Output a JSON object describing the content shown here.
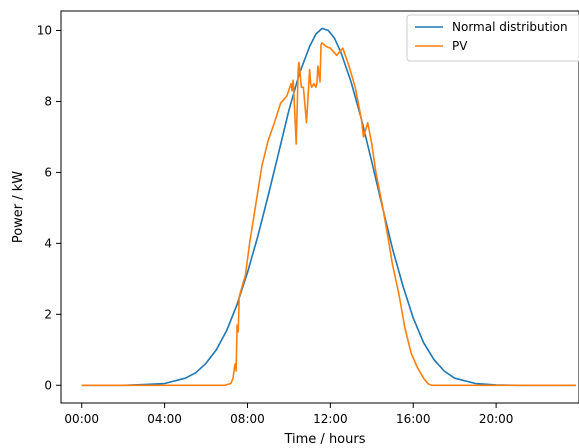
{
  "chart_data": {
    "type": "line",
    "title": "",
    "xlabel": "Time / hours",
    "ylabel": "Power / kW",
    "xlim": [
      -1,
      24
    ],
    "ylim": [
      -0.5,
      10.55
    ],
    "xticks": [
      {
        "value": 0,
        "label": "00:00"
      },
      {
        "value": 4,
        "label": "04:00"
      },
      {
        "value": 8,
        "label": "08:00"
      },
      {
        "value": 12,
        "label": "12:00"
      },
      {
        "value": 16,
        "label": "16:00"
      },
      {
        "value": 20,
        "label": "20:00"
      }
    ],
    "yticks": [
      {
        "value": 0,
        "label": "0"
      },
      {
        "value": 2,
        "label": "2"
      },
      {
        "value": 4,
        "label": "4"
      },
      {
        "value": 6,
        "label": "6"
      },
      {
        "value": 8,
        "label": "8"
      },
      {
        "value": 10,
        "label": "10"
      }
    ],
    "grid": false,
    "legend_position": "top-right",
    "series": [
      {
        "name": "Normal distribution",
        "color": "#1f77b4",
        "x": [
          0,
          1,
          2,
          3,
          4,
          5,
          5.5,
          6,
          6.5,
          7,
          7.5,
          8,
          8.5,
          9,
          9.5,
          10,
          10.5,
          11,
          11.3,
          11.6,
          11.9,
          12.2,
          12.5,
          13,
          13.5,
          14,
          14.5,
          15,
          15.5,
          16,
          16.5,
          17,
          17.5,
          18,
          19,
          20,
          21,
          22,
          23.85
        ],
        "y": [
          0.0,
          0.0,
          0.0,
          0.02,
          0.05,
          0.2,
          0.35,
          0.62,
          1.0,
          1.55,
          2.28,
          3.18,
          4.2,
          5.35,
          6.55,
          7.75,
          8.78,
          9.55,
          9.9,
          10.06,
          10.0,
          9.78,
          9.4,
          8.55,
          7.5,
          6.3,
          5.05,
          3.85,
          2.8,
          1.9,
          1.2,
          0.72,
          0.4,
          0.2,
          0.05,
          0.01,
          0.0,
          0.0,
          0.0
        ]
      },
      {
        "name": "PV",
        "color": "#ff7f0e",
        "x": [
          0,
          6.9,
          7.2,
          7.3,
          7.4,
          7.45,
          7.5,
          7.55,
          7.6,
          7.75,
          7.9,
          8.1,
          8.4,
          8.7,
          9.0,
          9.3,
          9.6,
          9.9,
          10.1,
          10.15,
          10.2,
          10.25,
          10.35,
          10.45,
          10.48,
          10.52,
          10.6,
          10.7,
          10.85,
          10.95,
          11.0,
          11.05,
          11.1,
          11.2,
          11.3,
          11.35,
          11.4,
          11.5,
          11.55,
          11.6,
          11.8,
          12.0,
          12.3,
          12.6,
          12.9,
          13.2,
          13.5,
          13.6,
          13.8,
          14.0,
          14.2,
          14.5,
          14.8,
          15.0,
          15.3,
          15.6,
          15.9,
          16.2,
          16.5,
          16.7,
          16.8,
          16.9,
          23.85
        ],
        "y": [
          0.0,
          0.0,
          0.05,
          0.2,
          0.6,
          0.4,
          1.7,
          1.5,
          2.5,
          2.8,
          3.1,
          4.0,
          5.1,
          6.2,
          6.9,
          7.4,
          7.95,
          8.15,
          8.5,
          8.3,
          8.6,
          8.1,
          6.8,
          8.9,
          9.1,
          8.9,
          8.4,
          8.4,
          7.4,
          8.4,
          8.9,
          8.5,
          8.4,
          8.5,
          8.4,
          8.5,
          9.0,
          8.55,
          9.6,
          9.65,
          9.55,
          9.5,
          9.3,
          9.5,
          9.0,
          8.4,
          7.5,
          7.0,
          7.4,
          6.8,
          6.0,
          5.1,
          4.1,
          3.4,
          2.6,
          1.6,
          0.9,
          0.5,
          0.2,
          0.05,
          0.02,
          0.0,
          0.0
        ]
      }
    ]
  }
}
